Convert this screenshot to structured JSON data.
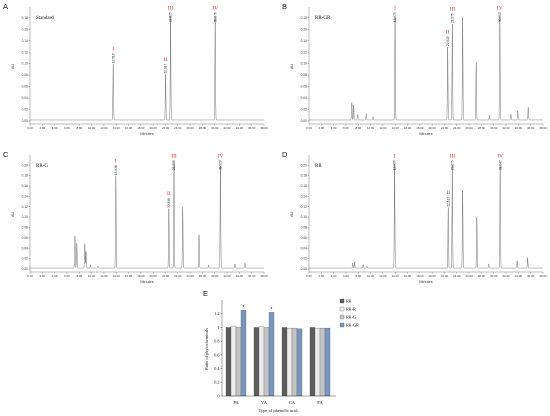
{
  "chart_data": [
    {
      "panel": "A",
      "type": "line",
      "sample": "Standard",
      "xlabel": "Minutes",
      "ylabel": "AU",
      "xlim": [
        0,
        38
      ],
      "ylim": [
        0,
        0.19
      ],
      "xticks": [
        "0.00",
        "2.00",
        "4.00",
        "6.00",
        "8.00",
        "10.00",
        "12.00",
        "14.00",
        "16.00",
        "18.00",
        "20.00",
        "22.00",
        "24.00",
        "26.00",
        "28.00",
        "30.00",
        "32.00",
        "34.00",
        "36.00",
        "38.00"
      ],
      "yticks": [
        "0.00",
        "0.02",
        "0.04",
        "0.06",
        "0.08",
        "0.10",
        "0.12",
        "0.14",
        "0.16",
        "0.18"
      ],
      "line_color": "#3a3a3a",
      "label_color": "#e3262b",
      "peaks": [
        {
          "time": 13.516,
          "height": 0.098,
          "rt_label": "13.516",
          "compound": "I"
        },
        {
          "time": 22.017,
          "height": 0.08,
          "rt_label": "22.017",
          "compound": "II"
        },
        {
          "time": 22.825,
          "height": 0.182,
          "rt_label": "22.825",
          "compound": "III"
        },
        {
          "time": 30.076,
          "height": 0.181,
          "rt_label": "30.076",
          "compound": "IV"
        }
      ]
    },
    {
      "panel": "B",
      "type": "line",
      "sample": "RR-GR",
      "xlabel": "Minutes",
      "ylabel": "AU",
      "xlim": [
        0,
        38
      ],
      "ylim": [
        0,
        0.19
      ],
      "xticks": [
        "0.00",
        "2.00",
        "4.00",
        "6.00",
        "8.00",
        "10.00",
        "12.00",
        "14.00",
        "16.00",
        "18.00",
        "20.00",
        "22.00",
        "24.00",
        "26.00",
        "28.00",
        "30.00",
        "32.00",
        "34.00",
        "36.00",
        "38.00"
      ],
      "yticks": [
        "0.00",
        "0.02",
        "0.04",
        "0.06",
        "0.08",
        "0.10",
        "0.12",
        "0.14",
        "0.16",
        "0.18"
      ],
      "line_color": "#3a3a3a",
      "label_color": "#e3262b",
      "peaks": [
        {
          "time": 6.95,
          "height": 0.03
        },
        {
          "time": 7.25,
          "height": 0.026
        },
        {
          "time": 7.9,
          "height": 0.01
        },
        {
          "time": 9.3,
          "height": 0.011
        },
        {
          "time": 10.4,
          "height": 0.006
        },
        {
          "time": 13.975,
          "height": 0.18,
          "rt_label": "13.975",
          "compound": "I"
        },
        {
          "time": 22.515,
          "height": 0.128,
          "rt_label": "22.515",
          "compound": "II"
        },
        {
          "time": 23.275,
          "height": 0.168,
          "rt_label": "23.275",
          "compound": "III"
        },
        {
          "time": 24.95,
          "height": 0.178
        },
        {
          "time": 27.15,
          "height": 0.1
        },
        {
          "time": 29.3,
          "height": 0.008
        },
        {
          "time": 30.99,
          "height": 0.18,
          "rt_label": "30.990",
          "compound": "IV"
        },
        {
          "time": 32.8,
          "height": 0.01
        },
        {
          "time": 33.9,
          "height": 0.016
        },
        {
          "time": 35.6,
          "height": 0.022
        }
      ]
    },
    {
      "panel": "C",
      "type": "line",
      "sample": "RR-G",
      "xlabel": "Minutes",
      "ylabel": "AU",
      "xlim": [
        0,
        38
      ],
      "ylim": [
        0,
        0.21
      ],
      "xticks": [
        "0.00",
        "2.00",
        "4.00",
        "6.00",
        "8.00",
        "10.00",
        "12.00",
        "14.00",
        "16.00",
        "18.00",
        "20.00",
        "22.00",
        "24.00",
        "26.00",
        "28.00",
        "30.00",
        "32.00",
        "34.00",
        "36.00",
        "38.00"
      ],
      "yticks": [
        "0.00",
        "0.02",
        "0.04",
        "0.06",
        "0.08",
        "0.10",
        "0.12",
        "0.14",
        "0.16",
        "0.18",
        "0.20"
      ],
      "line_color": "#3a3a3a",
      "label_color": "#e3262b",
      "peaks": [
        {
          "time": 7.3,
          "height": 0.062
        },
        {
          "time": 7.6,
          "height": 0.048
        },
        {
          "time": 8.9,
          "height": 0.047
        },
        {
          "time": 9.1,
          "height": 0.032
        },
        {
          "time": 9.8,
          "height": 0.006
        },
        {
          "time": 11.0,
          "height": 0.004
        },
        {
          "time": 13.938,
          "height": 0.178,
          "rt_label": "13.938",
          "compound": "I"
        },
        {
          "time": 22.546,
          "height": 0.115,
          "rt_label": "22.546",
          "compound": "II"
        },
        {
          "time": 23.386,
          "height": 0.2,
          "rt_label": "23.386",
          "compound": "III"
        },
        {
          "time": 24.8,
          "height": 0.117
        },
        {
          "time": 27.45,
          "height": 0.064
        },
        {
          "time": 29.0,
          "height": 0.006
        },
        {
          "time": 30.923,
          "height": 0.197,
          "rt_label": "30.923",
          "compound": "IV"
        },
        {
          "time": 33.3,
          "height": 0.008
        },
        {
          "time": 34.9,
          "height": 0.01
        }
      ]
    },
    {
      "panel": "D",
      "type": "line",
      "sample": "RR",
      "xlabel": "Minutes",
      "ylabel": "AU",
      "xlim": [
        0,
        38
      ],
      "ylim": [
        0,
        0.21
      ],
      "xticks": [
        "0.00",
        "2.00",
        "4.00",
        "6.00",
        "8.00",
        "10.00",
        "12.00",
        "14.00",
        "16.00",
        "18.00",
        "20.00",
        "22.00",
        "24.00",
        "26.00",
        "28.00",
        "30.00",
        "32.00",
        "34.00",
        "36.00",
        "38.00"
      ],
      "yticks": [
        "0.00",
        "0.02",
        "0.04",
        "0.06",
        "0.08",
        "0.10",
        "0.12",
        "0.14",
        "0.16",
        "0.18",
        "0.20"
      ],
      "line_color": "#3a3a3a",
      "label_color": "#e3262b",
      "peaks": [
        {
          "time": 7.1,
          "height": 0.01
        },
        {
          "time": 7.4,
          "height": 0.012
        },
        {
          "time": 8.8,
          "height": 0.007
        },
        {
          "time": 9.4,
          "height": 0.004
        },
        {
          "time": 13.9,
          "height": 0.2,
          "rt_label": "13.900",
          "compound": "I"
        },
        {
          "time": 22.612,
          "height": 0.117,
          "rt_label": "22.612",
          "compound": "II"
        },
        {
          "time": 23.275,
          "height": 0.2,
          "rt_label": "23.275",
          "compound": "III"
        },
        {
          "time": 24.95,
          "height": 0.15
        },
        {
          "time": 27.25,
          "height": 0.098
        },
        {
          "time": 29.2,
          "height": 0.008
        },
        {
          "time": 31.047,
          "height": 0.198,
          "rt_label": "31.047",
          "compound": "IV"
        },
        {
          "time": 33.8,
          "height": 0.014
        },
        {
          "time": 35.5,
          "height": 0.02
        }
      ]
    },
    {
      "panel": "E",
      "type": "bar",
      "categories": [
        "PA",
        "VA",
        "CA",
        "FA"
      ],
      "series": [
        {
          "name": "RR",
          "values": [
            1.0,
            1.0,
            1.0,
            1.0
          ],
          "color": "#5c5c5c"
        },
        {
          "name": "RR-R",
          "values": [
            1.02,
            1.01,
            0.99,
            0.99
          ],
          "color": "#ececec"
        },
        {
          "name": "RR-G",
          "values": [
            1.0,
            1.0,
            0.99,
            0.99
          ],
          "color": "#c4c4c4"
        },
        {
          "name": "RR-GR",
          "values": [
            1.25,
            1.22,
            0.98,
            0.99
          ],
          "color": "#7896bf",
          "annotations": [
            "*",
            "*",
            "",
            ""
          ]
        }
      ],
      "xlabel": "Type of phenolic acid",
      "ylabel": "Ratio of phytochemicals",
      "ylim": [
        0,
        1.4
      ],
      "yticks": [
        "0",
        "0.2",
        "0.4",
        "0.6",
        "0.8",
        "1",
        "1.2"
      ],
      "legend": "right"
    }
  ]
}
